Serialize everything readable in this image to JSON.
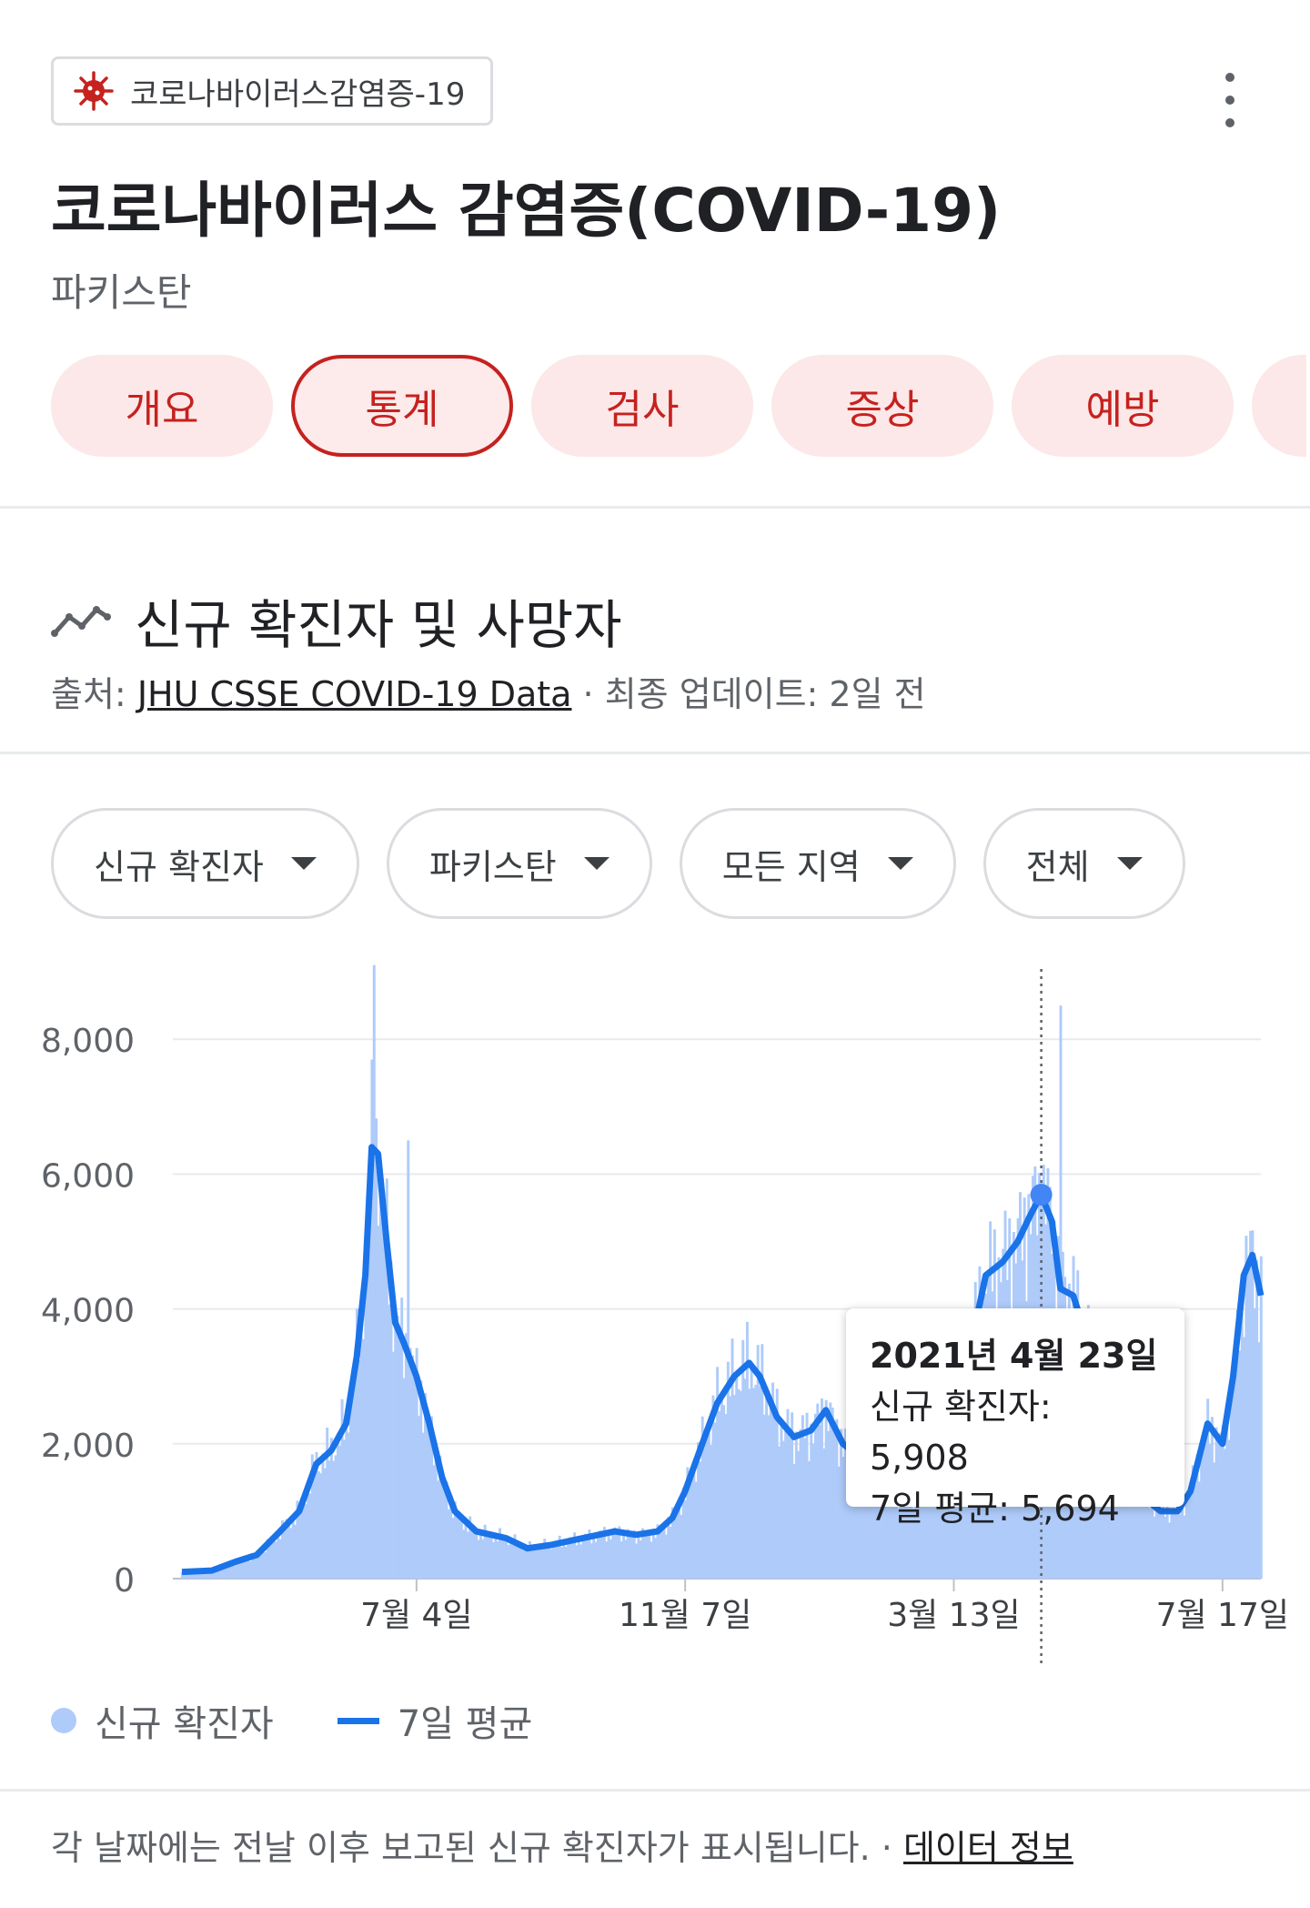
{
  "top_chip": {
    "label": "코로나바이러스감염증-19",
    "icon": "virus-icon"
  },
  "header": {
    "title": "코로나바이러스 감염증(COVID-19)",
    "subtitle": "파키스탄"
  },
  "tabs": [
    "개요",
    "통계",
    "검사",
    "증상",
    "예방"
  ],
  "active_tab": "통계",
  "section": {
    "title": "신규 확진자 및 사망자",
    "source_prefix": "출처: ",
    "source_link": "JHU CSSE COVID-19 Data",
    "source_suffix": " · 최종 업데이트: 2일 전"
  },
  "filters": [
    "신규 확진자",
    "파키스탄",
    "모든 지역",
    "전체"
  ],
  "tooltip": {
    "date": "2021년 4월 23일",
    "cases_label": "신규 확진자: 5,908",
    "avg_label": "7일 평균: 5,694"
  },
  "legend": {
    "bars": "신규 확진자",
    "line": "7일 평균"
  },
  "footer": {
    "text": "각 날짜에는 전날 이후 보고된 신규 확진자가 표시됩니다.  · ",
    "link": "데이터 정보"
  },
  "colors": {
    "accent_red": "#c5221f",
    "tab_bg": "#fce8e8",
    "bar": "#aecbfa",
    "line": "#1a73e8"
  },
  "chart_data": {
    "type": "bar",
    "title": "",
    "xlabel": "",
    "ylabel": "",
    "ylim": [
      0,
      9000
    ],
    "yticks": [
      0,
      2000,
      4000,
      6000,
      8000
    ],
    "ytick_labels": [
      "0",
      "2,000",
      "4,000",
      "6,000",
      "8,000"
    ],
    "xtick_labels": [
      "7월 4일",
      "11월 7일",
      "3월 13일",
      "7월 17일"
    ],
    "grid": true,
    "legend_position": "bottom-left",
    "x_start": "2020-03-16",
    "x_end": "2021-08-04",
    "xtick_dates": [
      "2020-07-04",
      "2020-11-07",
      "2021-03-13",
      "2021-07-17"
    ],
    "highlight": {
      "date": "2021-04-23",
      "cases": 5908,
      "avg": 5694
    },
    "spikes": [
      {
        "date": "2020-06-14",
        "value": 9100
      },
      {
        "date": "2020-06-30",
        "value": 6500
      },
      {
        "date": "2021-05-02",
        "value": 8500
      }
    ],
    "series": [
      {
        "name": "7일 평균",
        "points": [
          [
            "2020-03-16",
            100
          ],
          [
            "2020-03-30",
            120
          ],
          [
            "2020-04-10",
            250
          ],
          [
            "2020-04-20",
            350
          ],
          [
            "2020-05-01",
            700
          ],
          [
            "2020-05-10",
            1000
          ],
          [
            "2020-05-18",
            1700
          ],
          [
            "2020-05-25",
            1900
          ],
          [
            "2020-06-01",
            2300
          ],
          [
            "2020-06-06",
            3300
          ],
          [
            "2020-06-10",
            4500
          ],
          [
            "2020-06-13",
            6400
          ],
          [
            "2020-06-16",
            6300
          ],
          [
            "2020-06-20",
            5000
          ],
          [
            "2020-06-24",
            3800
          ],
          [
            "2020-06-28",
            3500
          ],
          [
            "2020-07-04",
            3000
          ],
          [
            "2020-07-10",
            2300
          ],
          [
            "2020-07-16",
            1500
          ],
          [
            "2020-07-22",
            1000
          ],
          [
            "2020-08-01",
            700
          ],
          [
            "2020-08-15",
            600
          ],
          [
            "2020-08-25",
            450
          ],
          [
            "2020-09-05",
            500
          ],
          [
            "2020-09-20",
            600
          ],
          [
            "2020-10-05",
            700
          ],
          [
            "2020-10-15",
            650
          ],
          [
            "2020-10-25",
            700
          ],
          [
            "2020-11-01",
            900
          ],
          [
            "2020-11-07",
            1300
          ],
          [
            "2020-11-15",
            2000
          ],
          [
            "2020-11-22",
            2600
          ],
          [
            "2020-11-30",
            3000
          ],
          [
            "2020-12-07",
            3200
          ],
          [
            "2020-12-12",
            3000
          ],
          [
            "2020-12-20",
            2400
          ],
          [
            "2020-12-28",
            2100
          ],
          [
            "2021-01-05",
            2200
          ],
          [
            "2021-01-12",
            2500
          ],
          [
            "2021-01-20",
            2000
          ],
          [
            "2021-01-28",
            1800
          ],
          [
            "2021-02-05",
            1500
          ],
          [
            "2021-02-12",
            1300
          ],
          [
            "2021-02-20",
            1200
          ],
          [
            "2021-02-28",
            1300
          ],
          [
            "2021-03-06",
            1500
          ],
          [
            "2021-03-13",
            2000
          ],
          [
            "2021-03-20",
            3300
          ],
          [
            "2021-03-28",
            4500
          ],
          [
            "2021-04-05",
            4700
          ],
          [
            "2021-04-12",
            5000
          ],
          [
            "2021-04-18",
            5400
          ],
          [
            "2021-04-23",
            5694
          ],
          [
            "2021-04-28",
            5300
          ],
          [
            "2021-05-02",
            4300
          ],
          [
            "2021-05-08",
            4200
          ],
          [
            "2021-05-15",
            3500
          ],
          [
            "2021-05-22",
            2800
          ],
          [
            "2021-06-01",
            2000
          ],
          [
            "2021-06-10",
            1200
          ],
          [
            "2021-06-18",
            1000
          ],
          [
            "2021-06-26",
            1000
          ],
          [
            "2021-07-02",
            1300
          ],
          [
            "2021-07-10",
            2300
          ],
          [
            "2021-07-17",
            2000
          ],
          [
            "2021-07-22",
            3000
          ],
          [
            "2021-07-27",
            4500
          ],
          [
            "2021-07-31",
            4800
          ],
          [
            "2021-08-04",
            4200
          ]
        ]
      }
    ]
  }
}
